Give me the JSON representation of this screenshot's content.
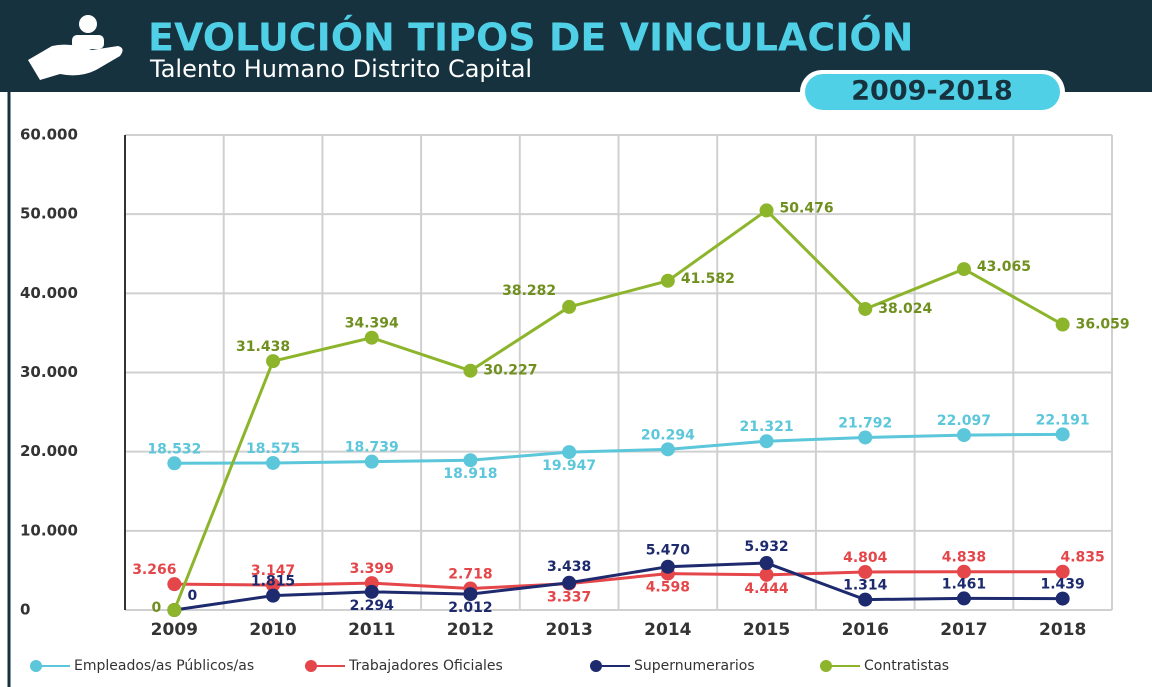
{
  "chart_data": {
    "type": "line",
    "title": "EVOLUCIÓN TIPOS DE VINCULACIÓN",
    "subtitle": "Talento Humano Distrito Capital",
    "period": "2009-2018",
    "categories": [
      "2009",
      "2010",
      "2011",
      "2012",
      "2013",
      "2014",
      "2015",
      "2016",
      "2017",
      "2018"
    ],
    "series": [
      {
        "name": "Empleados/as Públicos/as",
        "color": "#5cc6da",
        "values": [
          18532,
          18575,
          18739,
          18918,
          19947,
          20294,
          21321,
          21792,
          22097,
          22191
        ],
        "value_labels": [
          "18.532",
          "18.575",
          "18.739",
          "18.918",
          "19.947",
          "20.294",
          "21.321",
          "21.792",
          "22.097",
          "22.191"
        ]
      },
      {
        "name": "Trabajadores Oficiales",
        "color": "#e4464a",
        "values": [
          3266,
          3147,
          3399,
          2718,
          3337,
          4598,
          4444,
          4804,
          4838,
          4835
        ],
        "value_labels": [
          "3.266",
          "3.147",
          "3.399",
          "2.718",
          "3.337",
          "4.598",
          "4.444",
          "4.804",
          "4.838",
          "4.835"
        ]
      },
      {
        "name": "Supernumerarios",
        "color": "#1e2a6e",
        "values": [
          0,
          1815,
          2294,
          2012,
          3438,
          5470,
          5932,
          1314,
          1461,
          1439
        ],
        "value_labels": [
          "0",
          "1.815",
          "2.294",
          "2.012",
          "3.438",
          "5.470",
          "5.932",
          "1.314",
          "1.461",
          "1.439"
        ]
      },
      {
        "name": "Contratistas",
        "color": "#8db52c",
        "values": [
          0,
          31438,
          34394,
          30227,
          38282,
          41582,
          50476,
          38024,
          43065,
          36059
        ],
        "value_labels": [
          "0",
          "31.438",
          "34.394",
          "30.227",
          "38.282",
          "41.582",
          "50.476",
          "38.024",
          "43.065",
          "36.059"
        ]
      }
    ],
    "ylim": [
      0,
      60000
    ],
    "yticks": [
      0,
      {
        "value": 10000,
        "label": "10.000"
      },
      {
        "value": 20000,
        "label": "20.000"
      },
      {
        "value": 30000,
        "label": "30.000"
      },
      {
        "value": 40000,
        "label": "40.000"
      },
      {
        "value": 50000,
        "label": "50.000"
      },
      {
        "value": 60000,
        "label": "60.000"
      }
    ],
    "grid": true,
    "legend": "bottom"
  }
}
